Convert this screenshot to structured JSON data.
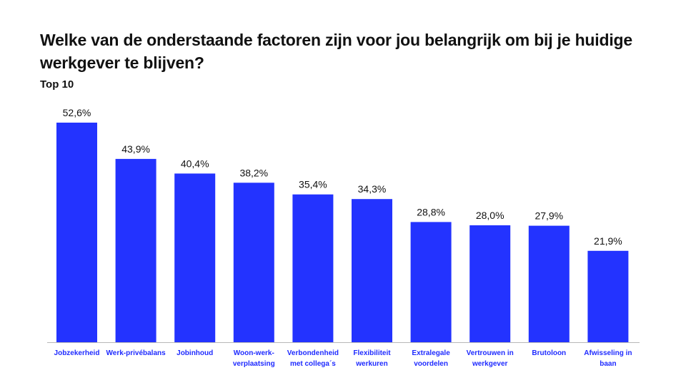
{
  "title": "Welke van de onderstaande factoren zijn voor jou belangrijk om bij je huidige werkgever te blijven?",
  "subtitle": "Top 10",
  "colors": {
    "bar": "#2333ff",
    "category_text": "#1f2bff",
    "axis": "#b8b8b8"
  },
  "chart_data": {
    "type": "bar",
    "title": "Welke van de onderstaande factoren zijn voor jou belangrijk om bij je huidige werkgever te blijven?",
    "subtitle": "Top 10",
    "categories": [
      [
        "Jobzekerheid"
      ],
      [
        "Werk-privébalans"
      ],
      [
        "Jobinhoud"
      ],
      [
        "Woon-werk-",
        "verplaatsing"
      ],
      [
        "Verbondenheid",
        "met collega´s"
      ],
      [
        "Flexibiliteit",
        "werkuren"
      ],
      [
        "Extralegale",
        "voordelen"
      ],
      [
        "Vertrouwen in",
        "werkgever"
      ],
      [
        "Brutoloon"
      ],
      [
        "Afwisseling in",
        "baan"
      ]
    ],
    "values": [
      52.6,
      43.9,
      40.4,
      38.2,
      35.4,
      34.3,
      28.8,
      28.0,
      27.9,
      21.9
    ],
    "value_labels": [
      "52,6%",
      "43,9%",
      "40,4%",
      "38,2%",
      "35,4%",
      "34,3%",
      "28,8%",
      "28,0%",
      "27,9%",
      "21,9%"
    ],
    "ylim": [
      0,
      52.6
    ],
    "grid": false,
    "legend": "none",
    "xlabel": "",
    "ylabel": ""
  }
}
